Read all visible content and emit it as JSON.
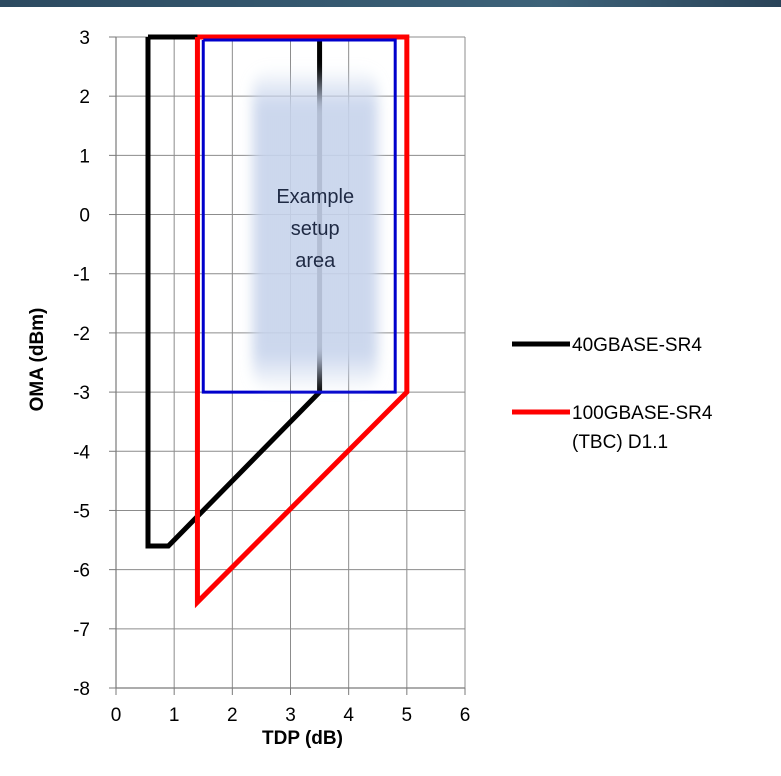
{
  "chart_data": {
    "type": "line",
    "title": "",
    "xlabel": "TDP (dB)",
    "ylabel": "OMA (dBm)",
    "xlim": [
      0,
      6
    ],
    "ylim": [
      -8,
      3
    ],
    "xticks": [
      "0",
      "1",
      "2",
      "3",
      "4",
      "5",
      "6"
    ],
    "yticks": [
      "3",
      "2",
      "1",
      "0",
      "-1",
      "-2",
      "-3",
      "-4",
      "-5",
      "-6",
      "-7",
      "-8"
    ],
    "grid": true,
    "legend_position": "right",
    "series": [
      {
        "name": "40GBASE-SR4",
        "color": "#000000",
        "x": [
          0.55,
          3.5,
          3.5,
          0.9,
          0.55,
          0.55
        ],
        "y": [
          3,
          3,
          -3,
          -5.6,
          -5.6,
          3
        ]
      },
      {
        "name": "100GBASE-SR4 (TBC) D1.1",
        "color": "#ff0000",
        "x": [
          1.4,
          5,
          5,
          1.4,
          1.4
        ],
        "y": [
          3,
          3,
          -3,
          -6.55,
          3
        ]
      },
      {
        "name": "",
        "color": "#0000cc",
        "x": [
          1.5,
          4.8,
          4.8,
          1.5,
          1.5
        ],
        "y": [
          2.95,
          2.95,
          -3,
          -3,
          2.95
        ]
      }
    ],
    "legend": [
      {
        "label_lines": [
          "40GBASE-SR4"
        ],
        "color": "#000000"
      },
      {
        "label_lines": [
          "100GBASE-SR4",
          "(TBC) D1.1"
        ],
        "color": "#ff0000"
      }
    ],
    "annotation": {
      "lines": [
        "Example",
        "setup",
        "area"
      ],
      "x": [
        2.35,
        4.5
      ],
      "y": [
        -3.0,
        2.5
      ]
    }
  }
}
